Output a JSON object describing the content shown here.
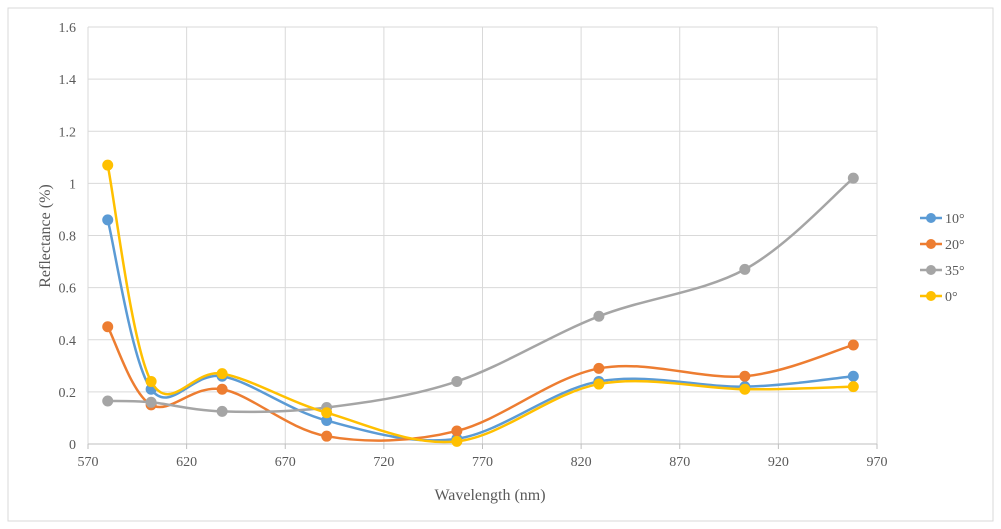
{
  "chart_data": {
    "type": "line",
    "smooth": true,
    "title": "",
    "xlabel": "Wavelength (nm)",
    "ylabel": "Reflectance (%)",
    "xlim": [
      570,
      970
    ],
    "ylim": [
      0,
      1.6
    ],
    "xticks": [
      "570",
      "620",
      "670",
      "720",
      "770",
      "820",
      "870",
      "920",
      "970"
    ],
    "yticks": [
      "0",
      "0.2",
      "0.4",
      "0.6",
      "0.8",
      "1",
      "1.2",
      "1.4",
      "1.6"
    ],
    "grid": true,
    "legend_position": "right",
    "x": [
      580,
      602,
      638,
      691,
      757,
      829,
      903,
      958
    ],
    "series": [
      {
        "name": "10°",
        "color": "#5B9BD5",
        "values": [
          0.86,
          0.21,
          0.26,
          0.09,
          0.02,
          0.24,
          0.22,
          0.26
        ]
      },
      {
        "name": "20°",
        "color": "#ED7D31",
        "values": [
          0.45,
          0.15,
          0.21,
          0.03,
          0.05,
          0.29,
          0.26,
          0.38
        ]
      },
      {
        "name": "35°",
        "color": "#A5A5A5",
        "values": [
          0.165,
          0.16,
          0.125,
          0.14,
          0.24,
          0.49,
          0.67,
          1.02
        ]
      },
      {
        "name": "0°",
        "color": "#FFC000",
        "values": [
          1.07,
          0.24,
          0.27,
          0.12,
          0.01,
          0.23,
          0.21,
          0.22
        ]
      }
    ]
  }
}
